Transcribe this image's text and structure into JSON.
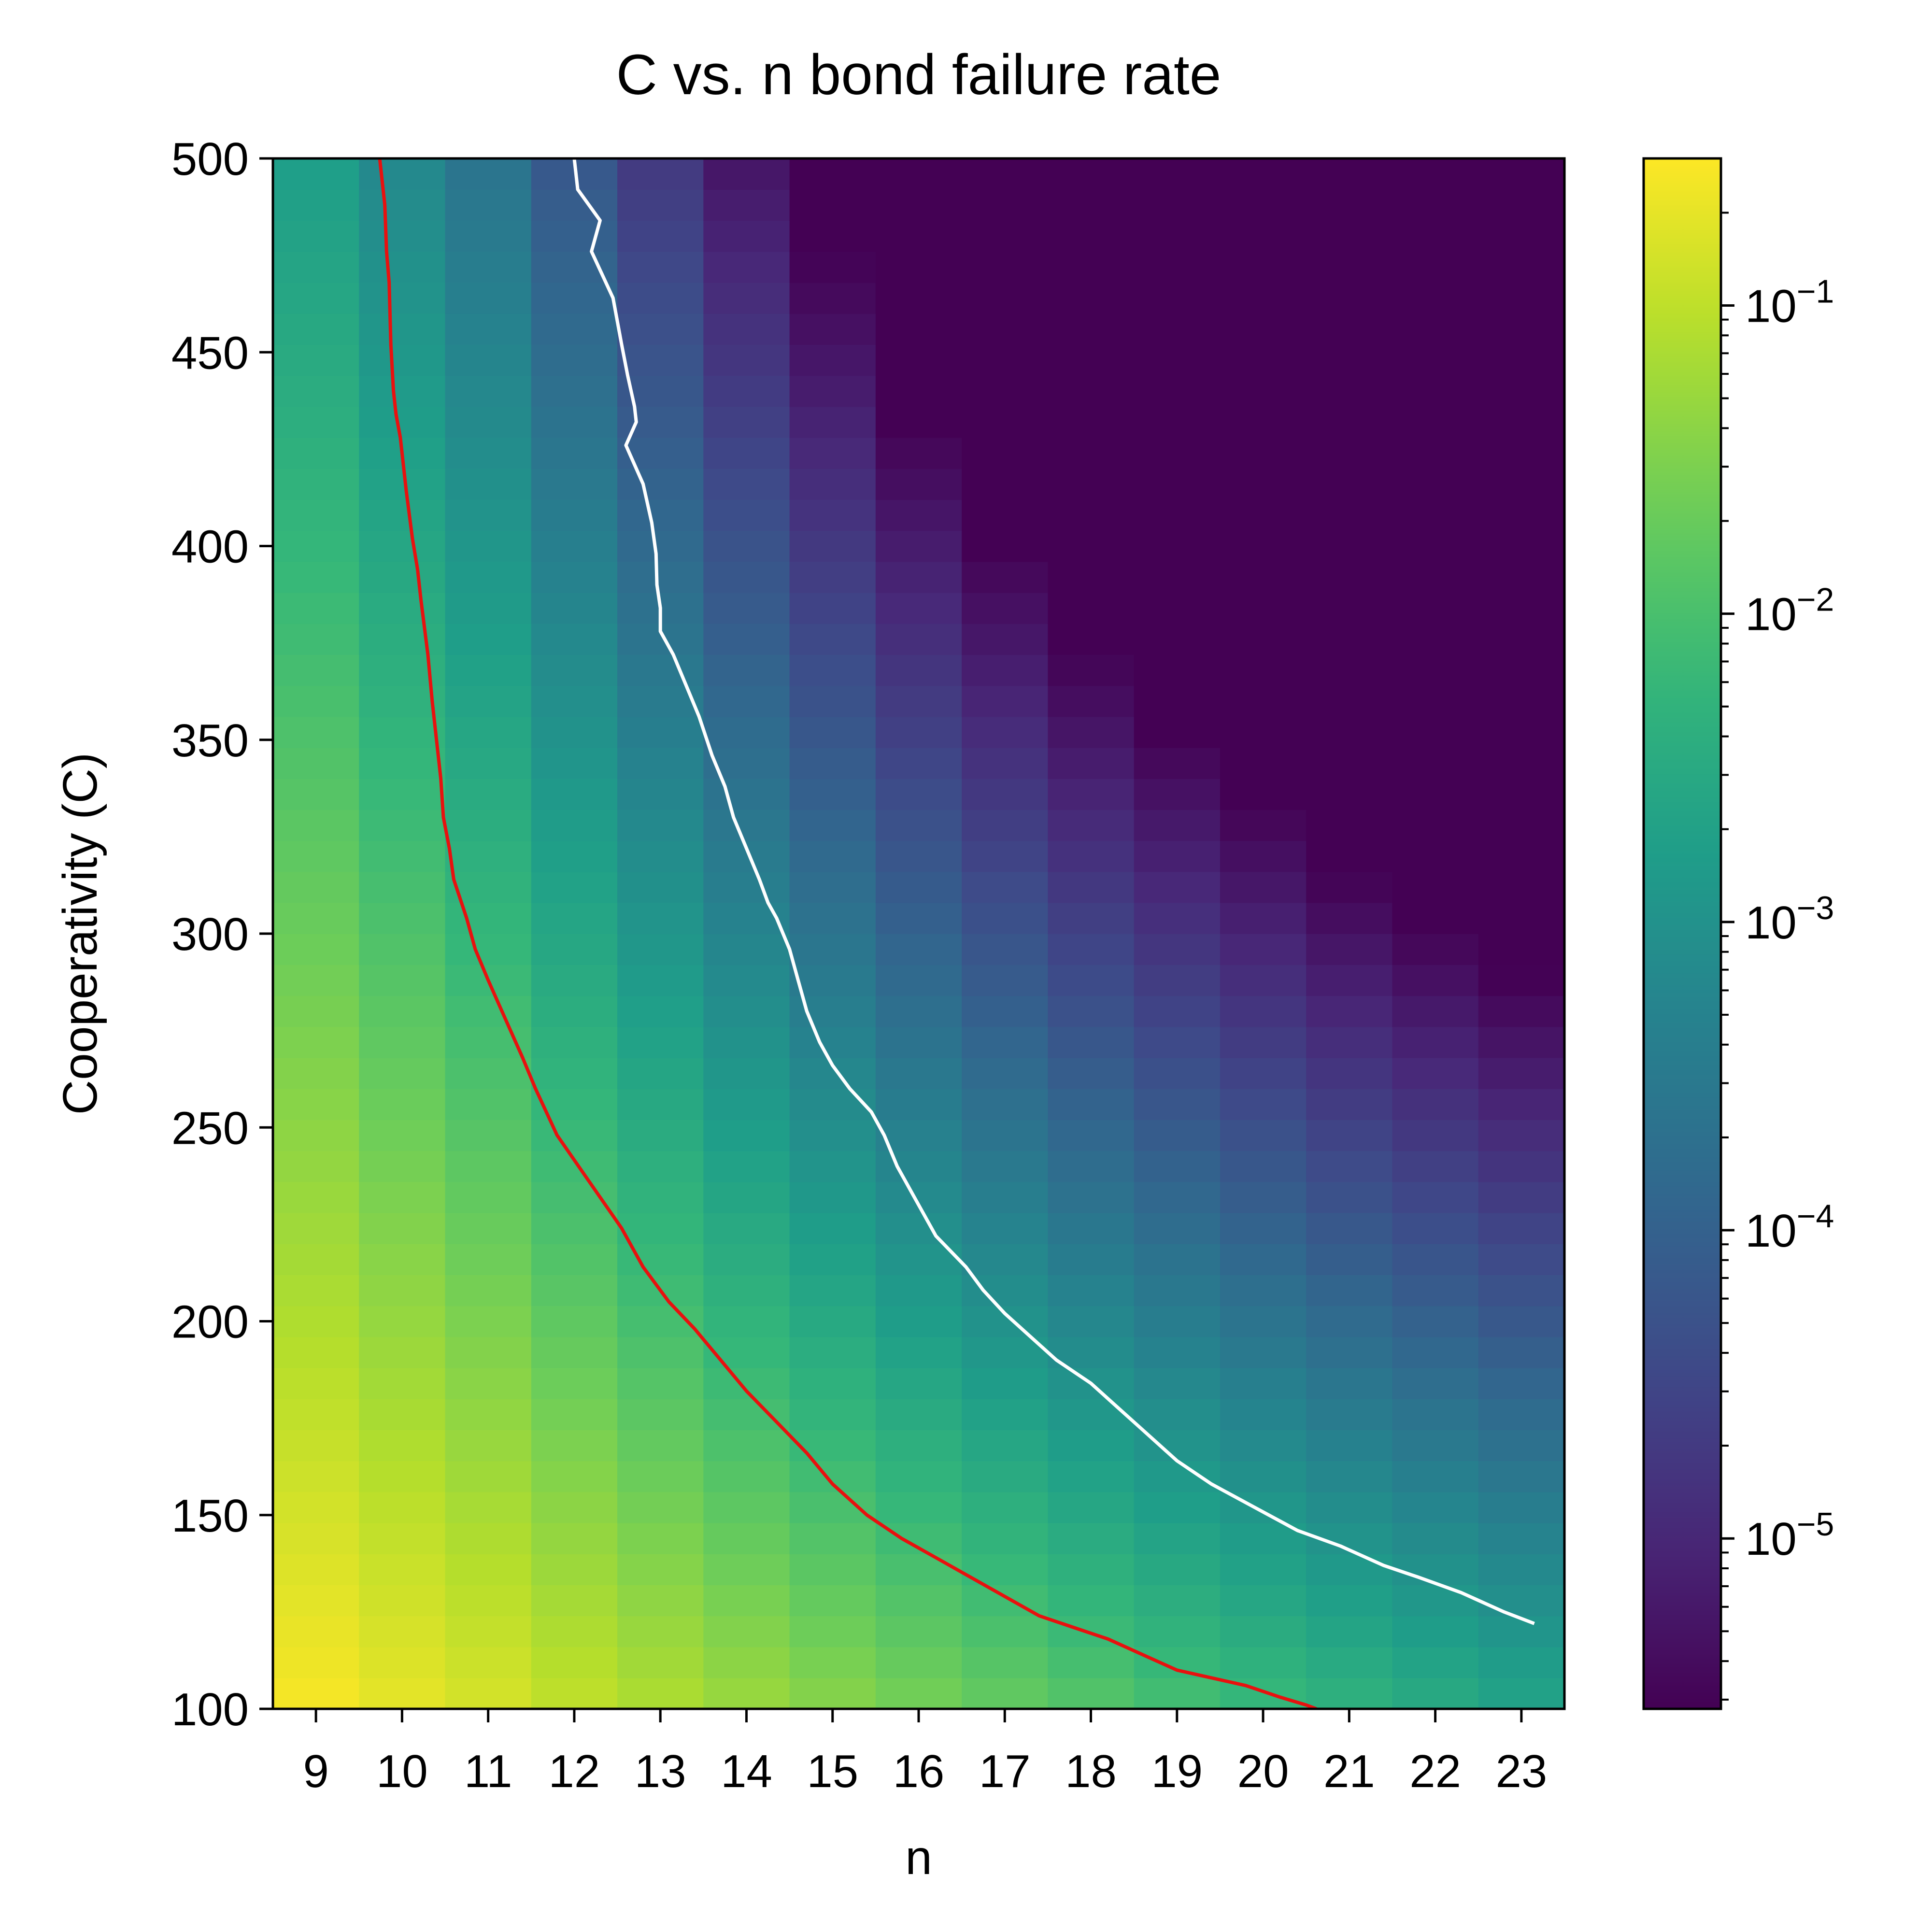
{
  "chart_data": {
    "type": "heatmap",
    "title": "C vs. n bond failure rate",
    "xlabel": "n",
    "ylabel": "Cooperativity (C)",
    "x": [
      9,
      10,
      11,
      12,
      13,
      14,
      15,
      16,
      17,
      18,
      19,
      20,
      21,
      22,
      23
    ],
    "x_ticks": [
      "9",
      "10",
      "11",
      "12",
      "13",
      "14",
      "15",
      "16",
      "17",
      "18",
      "19",
      "20",
      "21",
      "22",
      "23"
    ],
    "ylim": [
      100,
      500
    ],
    "y_ticks": [
      "100",
      "150",
      "200",
      "250",
      "300",
      "350",
      "400",
      "450",
      "500"
    ],
    "y_tick_values": [
      100,
      150,
      200,
      250,
      300,
      350,
      400,
      450,
      500
    ],
    "row_step": 8,
    "colormap": "viridis",
    "color_scale": "log",
    "colorbar_range": [
      2.8e-06,
      0.3
    ],
    "colorbar_ticks": [
      {
        "value": 0.1,
        "base": "10",
        "exp": "−1"
      },
      {
        "value": 0.01,
        "base": "10",
        "exp": "−2"
      },
      {
        "value": 0.001,
        "base": "10",
        "exp": "−3"
      },
      {
        "value": 0.0001,
        "base": "10",
        "exp": "−4"
      },
      {
        "value": 1e-05,
        "base": "10",
        "exp": "−5"
      }
    ],
    "column_profile": [
      {
        "n": 9,
        "at_100": 0.27,
        "slope": 2.2
      },
      {
        "n": 10,
        "at_100": 0.2,
        "slope": 2.5
      },
      {
        "n": 11,
        "at_100": 0.15,
        "slope": 2.8
      },
      {
        "n": 12,
        "at_100": 0.105,
        "slope": 3.2
      },
      {
        "n": 13,
        "at_100": 0.075,
        "slope": 3.6
      },
      {
        "n": 14,
        "at_100": 0.053,
        "slope": 4.0
      },
      {
        "n": 15,
        "at_100": 0.038,
        "slope": 4.4
      },
      {
        "n": 16,
        "at_100": 0.027,
        "slope": 4.8
      },
      {
        "n": 17,
        "at_100": 0.019,
        "slope": 5.1
      },
      {
        "n": 18,
        "at_100": 0.0135,
        "slope": 5.4
      },
      {
        "n": 19,
        "at_100": 0.0095,
        "slope": 5.6
      },
      {
        "n": 20,
        "at_100": 0.0068,
        "slope": 5.8
      },
      {
        "n": 21,
        "at_100": 0.0048,
        "slope": 6.0
      },
      {
        "n": 22,
        "at_100": 0.0034,
        "slope": 6.1
      },
      {
        "n": 23,
        "at_100": 0.0024,
        "slope": 6.2
      }
    ],
    "missing_cells": [
      {
        "n": 17,
        "C": [
          492
        ]
      },
      {
        "n": 18,
        "C": [
          492,
          468,
          452,
          444,
          388
        ]
      },
      {
        "n": 19,
        "C": [
          492,
          484,
          452,
          444,
          436,
          428,
          420,
          412,
          404
        ]
      },
      {
        "n": 20,
        "C": [
          492,
          484,
          476,
          468,
          460,
          452,
          444,
          436,
          428,
          404,
          380,
          372,
          364,
          356,
          348,
          316,
          308,
          292
        ]
      },
      {
        "n": 21,
        "C": [
          492,
          484,
          460,
          452,
          444,
          436,
          428,
          404,
          396,
          388,
          380,
          372,
          356,
          340,
          316,
          300,
          284
        ]
      },
      {
        "n": 22,
        "C": [
          492,
          484,
          476,
          468,
          460,
          452,
          444,
          436,
          428,
          404,
          396,
          388,
          380,
          372,
          364,
          356,
          348,
          340,
          332,
          324,
          316,
          308,
          300,
          292,
          284
        ]
      },
      {
        "n": 23,
        "C": [
          492,
          484,
          476,
          468,
          460,
          452,
          444,
          436,
          428,
          420,
          412,
          404,
          396,
          388,
          380,
          372,
          364,
          356,
          348,
          340,
          332,
          316,
          308,
          300,
          292,
          284,
          252,
          244,
          220
        ]
      }
    ],
    "floor_cells": [
      {
        "n": 18,
        "C": [
          476,
          460
        ]
      },
      {
        "n": 19,
        "C": [
          476,
          468,
          460,
          396,
          388,
          380,
          372,
          348,
          340
        ]
      },
      {
        "n": 20,
        "C": [
          420,
          396,
          388,
          284
        ]
      },
      {
        "n": 21,
        "C": [
          476,
          420,
          364,
          340,
          292
        ]
      },
      {
        "n": 22,
        "C": [
          420,
          252
        ]
      },
      {
        "n": 23,
        "C": [
          316,
          276,
          268,
          236,
          220
        ]
      }
    ],
    "contours": [
      {
        "name": "red",
        "color": "#e8110f",
        "points": [
          [
            9.74,
            500
          ],
          [
            9.8,
            488
          ],
          [
            9.82,
            476
          ],
          [
            9.85,
            468
          ],
          [
            9.87,
            452
          ],
          [
            9.9,
            440
          ],
          [
            9.93,
            434
          ],
          [
            9.98,
            428
          ],
          [
            10.05,
            414
          ],
          [
            10.12,
            402
          ],
          [
            10.18,
            394
          ],
          [
            10.22,
            386
          ],
          [
            10.3,
            372
          ],
          [
            10.35,
            360
          ],
          [
            10.4,
            350
          ],
          [
            10.45,
            340
          ],
          [
            10.48,
            330
          ],
          [
            10.55,
            322
          ],
          [
            10.6,
            314
          ],
          [
            10.75,
            304
          ],
          [
            10.85,
            296
          ],
          [
            11.0,
            288
          ],
          [
            11.2,
            278
          ],
          [
            11.4,
            268
          ],
          [
            11.55,
            260
          ],
          [
            11.8,
            248
          ],
          [
            12.05,
            240
          ],
          [
            12.3,
            232
          ],
          [
            12.55,
            224
          ],
          [
            12.8,
            214
          ],
          [
            13.1,
            205
          ],
          [
            13.4,
            198
          ],
          [
            13.7,
            190
          ],
          [
            14.0,
            182
          ],
          [
            14.35,
            174
          ],
          [
            14.7,
            166
          ],
          [
            15.0,
            158
          ],
          [
            15.4,
            150
          ],
          [
            15.8,
            144
          ],
          [
            16.2,
            139
          ],
          [
            16.6,
            134
          ],
          [
            17.0,
            129
          ],
          [
            17.4,
            124
          ],
          [
            17.8,
            121
          ],
          [
            18.2,
            118
          ],
          [
            18.6,
            114
          ],
          [
            19.0,
            110
          ],
          [
            19.4,
            108
          ],
          [
            19.8,
            106
          ],
          [
            20.2,
            103
          ],
          [
            20.5,
            101
          ],
          [
            20.62,
            100
          ]
        ]
      },
      {
        "name": "white",
        "color": "#ffffff",
        "points": [
          [
            12.0,
            500
          ],
          [
            12.04,
            492
          ],
          [
            12.3,
            484
          ],
          [
            12.2,
            476
          ],
          [
            12.45,
            464
          ],
          [
            12.55,
            452
          ],
          [
            12.62,
            444
          ],
          [
            12.7,
            436
          ],
          [
            12.72,
            432
          ],
          [
            12.6,
            426
          ],
          [
            12.8,
            416
          ],
          [
            12.9,
            406
          ],
          [
            12.95,
            398
          ],
          [
            12.96,
            390
          ],
          [
            13.0,
            384
          ],
          [
            13.0,
            378
          ],
          [
            13.15,
            372
          ],
          [
            13.3,
            364
          ],
          [
            13.45,
            356
          ],
          [
            13.6,
            346
          ],
          [
            13.75,
            338
          ],
          [
            13.85,
            330
          ],
          [
            14.0,
            322
          ],
          [
            14.15,
            314
          ],
          [
            14.25,
            308
          ],
          [
            14.35,
            304
          ],
          [
            14.5,
            296
          ],
          [
            14.6,
            288
          ],
          [
            14.7,
            280
          ],
          [
            14.85,
            272
          ],
          [
            15.0,
            266
          ],
          [
            15.2,
            260
          ],
          [
            15.45,
            254
          ],
          [
            15.6,
            248
          ],
          [
            15.75,
            240
          ],
          [
            16.0,
            230
          ],
          [
            16.2,
            222
          ],
          [
            16.55,
            214
          ],
          [
            16.75,
            208
          ],
          [
            17.0,
            202
          ],
          [
            17.3,
            196
          ],
          [
            17.6,
            190
          ],
          [
            18.0,
            184
          ],
          [
            18.3,
            178
          ],
          [
            18.6,
            172
          ],
          [
            19.0,
            164
          ],
          [
            19.4,
            158
          ],
          [
            19.9,
            152
          ],
          [
            20.4,
            146
          ],
          [
            20.9,
            142
          ],
          [
            21.4,
            137
          ],
          [
            21.8,
            134
          ],
          [
            22.3,
            130
          ],
          [
            22.8,
            125
          ],
          [
            23.15,
            122
          ]
        ]
      }
    ]
  }
}
